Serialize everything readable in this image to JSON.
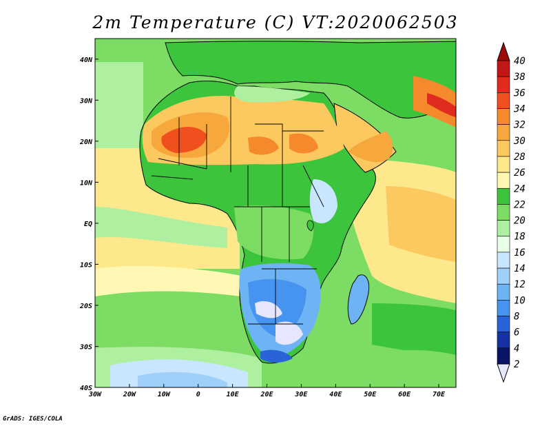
{
  "title": "2m Temperature (C) VT:2020062503",
  "credit": "GrADS: IGES/COLA",
  "map": {
    "variable": "2m Temperature",
    "units": "C",
    "valid_time": "2020062503",
    "lon_range": [
      -30,
      75
    ],
    "lat_range": [
      -40,
      45
    ],
    "lon_ticks": [
      "30W",
      "20W",
      "10W",
      "0",
      "10E",
      "20E",
      "30E",
      "40E",
      "50E",
      "60E",
      "70E"
    ],
    "lat_ticks": [
      "40N",
      "30N",
      "20N",
      "10N",
      "EQ",
      "10S",
      "20S",
      "30S",
      "40S"
    ]
  },
  "colorbar": {
    "levels": [
      "40",
      "38",
      "36",
      "34",
      "32",
      "30",
      "28",
      "26",
      "24",
      "22",
      "20",
      "18",
      "16",
      "14",
      "12",
      "10",
      "8",
      "6",
      "4",
      "2"
    ],
    "colors": [
      "#9e0a0a",
      "#c11717",
      "#e02c1e",
      "#f0501e",
      "#f48a2c",
      "#f7a83d",
      "#fcc860",
      "#fde88c",
      "#fff8b4",
      "#3cc43c",
      "#7ddc64",
      "#aef0a0",
      "#e8ffe8",
      "#c8e6ff",
      "#a0d0fa",
      "#6eb4f5",
      "#4694f0",
      "#2864d8",
      "#1432a0",
      "#0a1464",
      "#e6e6ff"
    ]
  }
}
